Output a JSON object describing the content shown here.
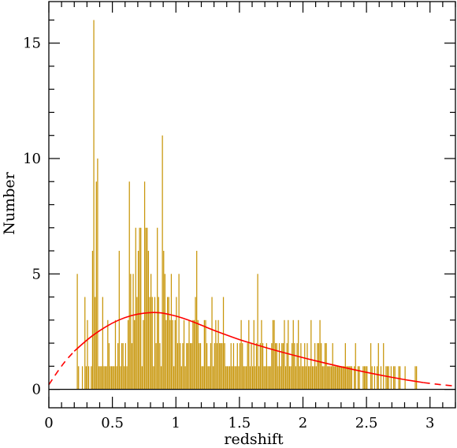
{
  "chart_data": {
    "type": "bar",
    "xlabel": "redshift",
    "ylabel": "Number",
    "xlim": [
      0,
      3.2
    ],
    "ylim": [
      -0.8,
      16.8
    ],
    "x_ticks": [
      "0",
      "0.5",
      "1",
      "1.5",
      "2",
      "2.5",
      "3"
    ],
    "x_tick_values": [
      0,
      0.5,
      1,
      1.5,
      2,
      2.5,
      3
    ],
    "y_ticks": [
      "0",
      "5",
      "10",
      "15"
    ],
    "y_tick_values": [
      0,
      5,
      10,
      15
    ],
    "grid": false,
    "bar_color": "#c8960a",
    "curve_color": "#ff0000",
    "bin_width": 0.01,
    "bins_start": 0.2,
    "values": [
      0,
      0,
      5,
      1,
      0,
      0,
      1,
      0,
      4,
      1,
      3,
      1,
      0,
      1,
      6,
      16,
      4,
      9,
      10,
      1,
      1,
      1,
      4,
      1,
      1,
      1,
      3,
      2,
      1,
      1,
      1,
      1,
      3,
      1,
      2,
      6,
      1,
      2,
      2,
      1,
      2,
      1,
      3,
      9,
      5,
      2,
      5,
      3,
      7,
      4,
      6,
      7,
      7,
      1,
      3,
      9,
      7,
      7,
      6,
      4,
      5,
      4,
      1,
      4,
      2,
      7,
      4,
      2,
      1,
      11,
      6,
      5,
      3,
      4,
      4,
      3,
      5,
      3,
      1,
      3,
      4,
      2,
      5,
      2,
      1,
      2,
      3,
      1,
      2,
      2,
      3,
      2,
      2,
      3,
      3,
      4,
      6,
      3,
      2,
      2,
      1,
      1,
      3,
      3,
      2,
      1,
      1,
      2,
      4,
      1,
      2,
      3,
      2,
      3,
      2,
      2,
      2,
      4,
      2,
      1,
      1,
      1,
      1,
      2,
      1,
      2,
      1,
      1,
      2,
      1,
      2,
      3,
      2,
      1,
      1,
      1,
      2,
      3,
      1,
      2,
      1,
      3,
      1,
      2,
      5,
      1,
      2,
      3,
      2,
      1,
      1,
      2,
      1,
      1,
      1,
      2,
      3,
      3,
      2,
      2,
      1,
      2,
      1,
      2,
      2,
      3,
      1,
      2,
      3,
      1,
      1,
      2,
      3,
      2,
      1,
      2,
      3,
      1,
      2,
      1,
      1,
      2,
      1,
      2,
      1,
      1,
      3,
      1,
      1,
      2,
      1,
      2,
      2,
      3,
      2,
      1,
      1,
      2,
      2,
      1,
      1,
      1,
      1,
      2,
      1,
      1,
      1,
      1,
      1,
      1,
      1,
      1,
      1,
      2,
      1,
      1,
      1,
      1,
      1,
      0,
      1,
      2,
      0,
      1,
      1,
      0,
      0,
      1,
      1,
      1,
      1,
      0,
      0,
      2,
      1,
      0,
      1,
      0,
      1,
      2,
      0,
      1,
      0,
      2,
      0,
      1,
      1,
      1,
      0,
      1,
      0,
      1,
      1,
      0,
      0,
      1,
      1,
      0,
      0,
      0,
      1,
      0,
      0,
      0,
      0,
      0,
      0,
      0,
      1,
      1
    ],
    "curve": {
      "x": [
        0,
        0.1,
        0.2,
        0.3,
        0.4,
        0.5,
        0.6,
        0.7,
        0.8,
        0.85,
        0.9,
        1.0,
        1.1,
        1.2,
        1.3,
        1.4,
        1.5,
        1.6,
        1.8,
        2.0,
        2.2,
        2.4,
        2.6,
        2.8,
        2.95,
        3.05,
        3.2
      ],
      "y": [
        0.2,
        1.05,
        1.65,
        2.15,
        2.55,
        2.88,
        3.12,
        3.27,
        3.33,
        3.33,
        3.3,
        3.18,
        3.0,
        2.78,
        2.55,
        2.35,
        2.15,
        1.98,
        1.66,
        1.37,
        1.1,
        0.85,
        0.62,
        0.42,
        0.29,
        0.22,
        0.14
      ],
      "solid_range": [
        0.2,
        2.95
      ]
    }
  }
}
